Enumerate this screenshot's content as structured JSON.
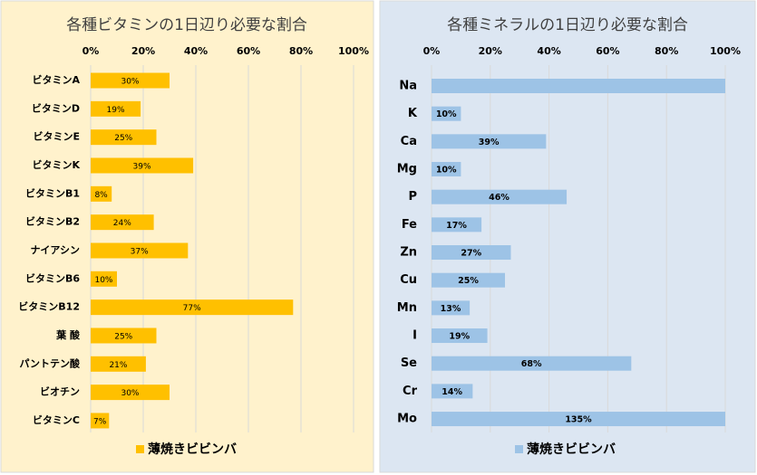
{
  "chart_data": [
    {
      "type": "bar",
      "orientation": "horizontal",
      "title": "各種ビタミンの1日辺り必要な割合",
      "categories": [
        "ビタミンA",
        "ビタミンD",
        "ビタミンE",
        "ビタミンK",
        "ビタミンB1",
        "ビタミンB2",
        "ナイアシン",
        "ビタミンB6",
        "ビタミンB12",
        "葉 酸",
        "パントテン酸",
        "ビオチン",
        "ビタミンC"
      ],
      "series": [
        {
          "name": "薄焼きビビンバ",
          "color": "#ffc000",
          "values": [
            30,
            19,
            25,
            39,
            8,
            24,
            37,
            10,
            77,
            25,
            21,
            30,
            7
          ],
          "value_labels": [
            "30%",
            "19%",
            "25%",
            "39%",
            "8%",
            "24%",
            "37%",
            "10%",
            "77%",
            "25%",
            "21%",
            "30%",
            "7%"
          ]
        }
      ],
      "xlim": [
        0,
        100
      ],
      "xticks": [
        {
          "value": 0,
          "label": "0%"
        },
        {
          "value": 20,
          "label": "20%"
        },
        {
          "value": 40,
          "label": "40%"
        },
        {
          "value": 60,
          "label": "60%"
        },
        {
          "value": 80,
          "label": "80%"
        },
        {
          "value": 100,
          "label": "100%"
        }
      ],
      "grid": true,
      "legend": "bottom"
    },
    {
      "type": "bar",
      "orientation": "horizontal",
      "title": "各種ミネラルの1日辺り必要な割合",
      "categories": [
        "Na",
        "K",
        "Ca",
        "Mg",
        "P",
        "Fe",
        "Zn",
        "Cu",
        "Mn",
        "I",
        "Se",
        "Cr",
        "Mo"
      ],
      "series": [
        {
          "name": "薄焼きビビンバ",
          "color": "#9dc3e6",
          "values": [
            100,
            10,
            39,
            10,
            46,
            17,
            27,
            25,
            13,
            19,
            68,
            14,
            135
          ],
          "value_labels": [
            null,
            "10%",
            "39%",
            "10%",
            "46%",
            "17%",
            "27%",
            "25%",
            "13%",
            "19%",
            "68%",
            "14%",
            "135%"
          ]
        }
      ],
      "xlim": [
        0,
        100
      ],
      "xticks": [
        {
          "value": 0,
          "label": "0%"
        },
        {
          "value": 20,
          "label": "20%"
        },
        {
          "value": 40,
          "label": "40%"
        },
        {
          "value": 60,
          "label": "60%"
        },
        {
          "value": 80,
          "label": "80%"
        },
        {
          "value": 100,
          "label": "100%"
        }
      ],
      "grid": true,
      "legend": "bottom"
    }
  ]
}
